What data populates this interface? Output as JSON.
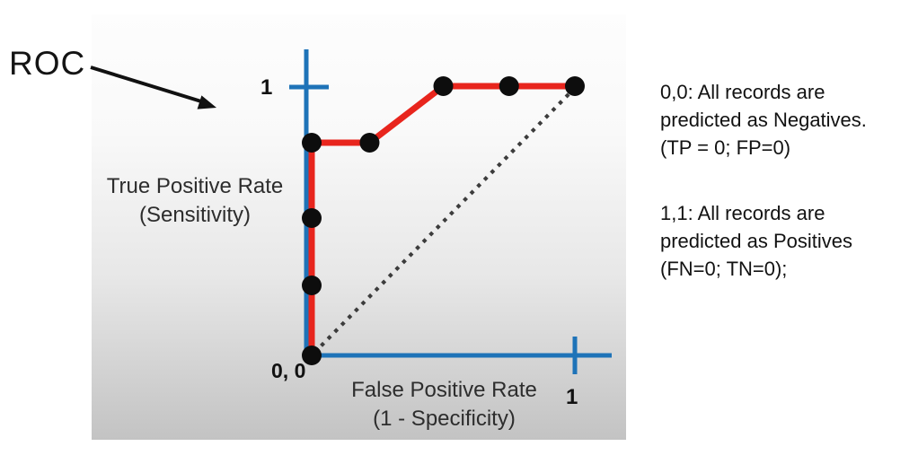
{
  "slide": {
    "roc_label": "ROC"
  },
  "chart": {
    "y_axis_title_line1": "True Positive Rate",
    "y_axis_title_line2": "(Sensitivity)",
    "x_axis_title_line1": "False Positive Rate",
    "x_axis_title_line2": "(1 - Specificity)",
    "y_max_tick_label": "1",
    "x_max_tick_label": "1",
    "origin_label": "0, 0"
  },
  "annotations": {
    "note_00": "0,0: All records are\npredicted as Negatives.\n(TP = 0; FP=0)",
    "note_11": "1,1: All records are\npredicted as Positives\n(FN=0; TN=0);"
  },
  "colors": {
    "axis_blue": "#1e73b8",
    "curve_red": "#e8251d",
    "marker_black": "#0d0d0d",
    "diagonal_gray": "#3c3c3c",
    "arrow_black": "#111111"
  },
  "chart_data": {
    "type": "line",
    "title": "ROC",
    "xlabel": "False Positive Rate (1 - Specificity)",
    "ylabel": "True Positive Rate (Sensitivity)",
    "xlim": [
      0,
      1
    ],
    "ylim": [
      0,
      1
    ],
    "x_ticks": [
      {
        "value": 1,
        "label": "1"
      }
    ],
    "y_ticks": [
      {
        "value": 1,
        "label": "1"
      }
    ],
    "origin_label": "0, 0",
    "grid": false,
    "legend": false,
    "series": [
      {
        "name": "ROC curve",
        "style": "solid",
        "color": "#e8251d",
        "marker": "filled-black-circle",
        "points": [
          [
            0,
            0
          ],
          [
            0,
            0.26
          ],
          [
            0,
            0.51
          ],
          [
            0,
            0.79
          ],
          [
            0.22,
            0.79
          ],
          [
            0.5,
            1.0
          ],
          [
            0.75,
            1.0
          ],
          [
            1.0,
            1.0
          ]
        ]
      },
      {
        "name": "random classifier diagonal",
        "style": "dotted",
        "color": "#3c3c3c",
        "marker": "none",
        "points": [
          [
            0,
            0
          ],
          [
            1,
            1
          ]
        ]
      }
    ]
  }
}
